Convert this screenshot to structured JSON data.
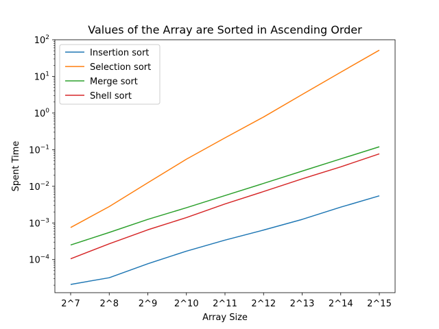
{
  "chart_data": {
    "type": "line",
    "title": "Values of the Array are Sorted in Ascending Order",
    "xlabel": "Array Size",
    "ylabel": "Spent Time",
    "categories": [
      "2^7",
      "2^8",
      "2^9",
      "2^10",
      "2^11",
      "2^12",
      "2^13",
      "2^14",
      "2^15"
    ],
    "y_scale": "log",
    "ylim": [
      1.25e-05,
      100
    ],
    "y_ticks": [
      {
        "base": "10",
        "exp": "−4",
        "value": 0.0001
      },
      {
        "base": "10",
        "exp": "−3",
        "value": 0.001
      },
      {
        "base": "10",
        "exp": "−2",
        "value": 0.01
      },
      {
        "base": "10",
        "exp": "−1",
        "value": 0.1
      },
      {
        "base": "10",
        "exp": "0",
        "value": 1
      },
      {
        "base": "10",
        "exp": "1",
        "value": 10
      },
      {
        "base": "10",
        "exp": "2",
        "value": 100
      }
    ],
    "legend_position": "top-left",
    "grid": false,
    "series": [
      {
        "name": "Insertion sort",
        "color": "#1f77b4",
        "values": [
          2.1e-05,
          3.2e-05,
          7.7e-05,
          0.00017,
          0.00034,
          0.00064,
          0.00125,
          0.0027,
          0.0055
        ]
      },
      {
        "name": "Selection sort",
        "color": "#ff7f0e",
        "values": [
          0.00075,
          0.0028,
          0.0125,
          0.055,
          0.21,
          0.78,
          3.2,
          13,
          52
        ]
      },
      {
        "name": "Merge sort",
        "color": "#2ca02c",
        "values": [
          0.00025,
          0.00055,
          0.00125,
          0.0026,
          0.0056,
          0.012,
          0.026,
          0.056,
          0.12
        ]
      },
      {
        "name": "Shell sort",
        "color": "#d62728",
        "values": [
          0.000105,
          0.00027,
          0.00065,
          0.0014,
          0.0033,
          0.0072,
          0.016,
          0.034,
          0.077
        ]
      }
    ]
  }
}
